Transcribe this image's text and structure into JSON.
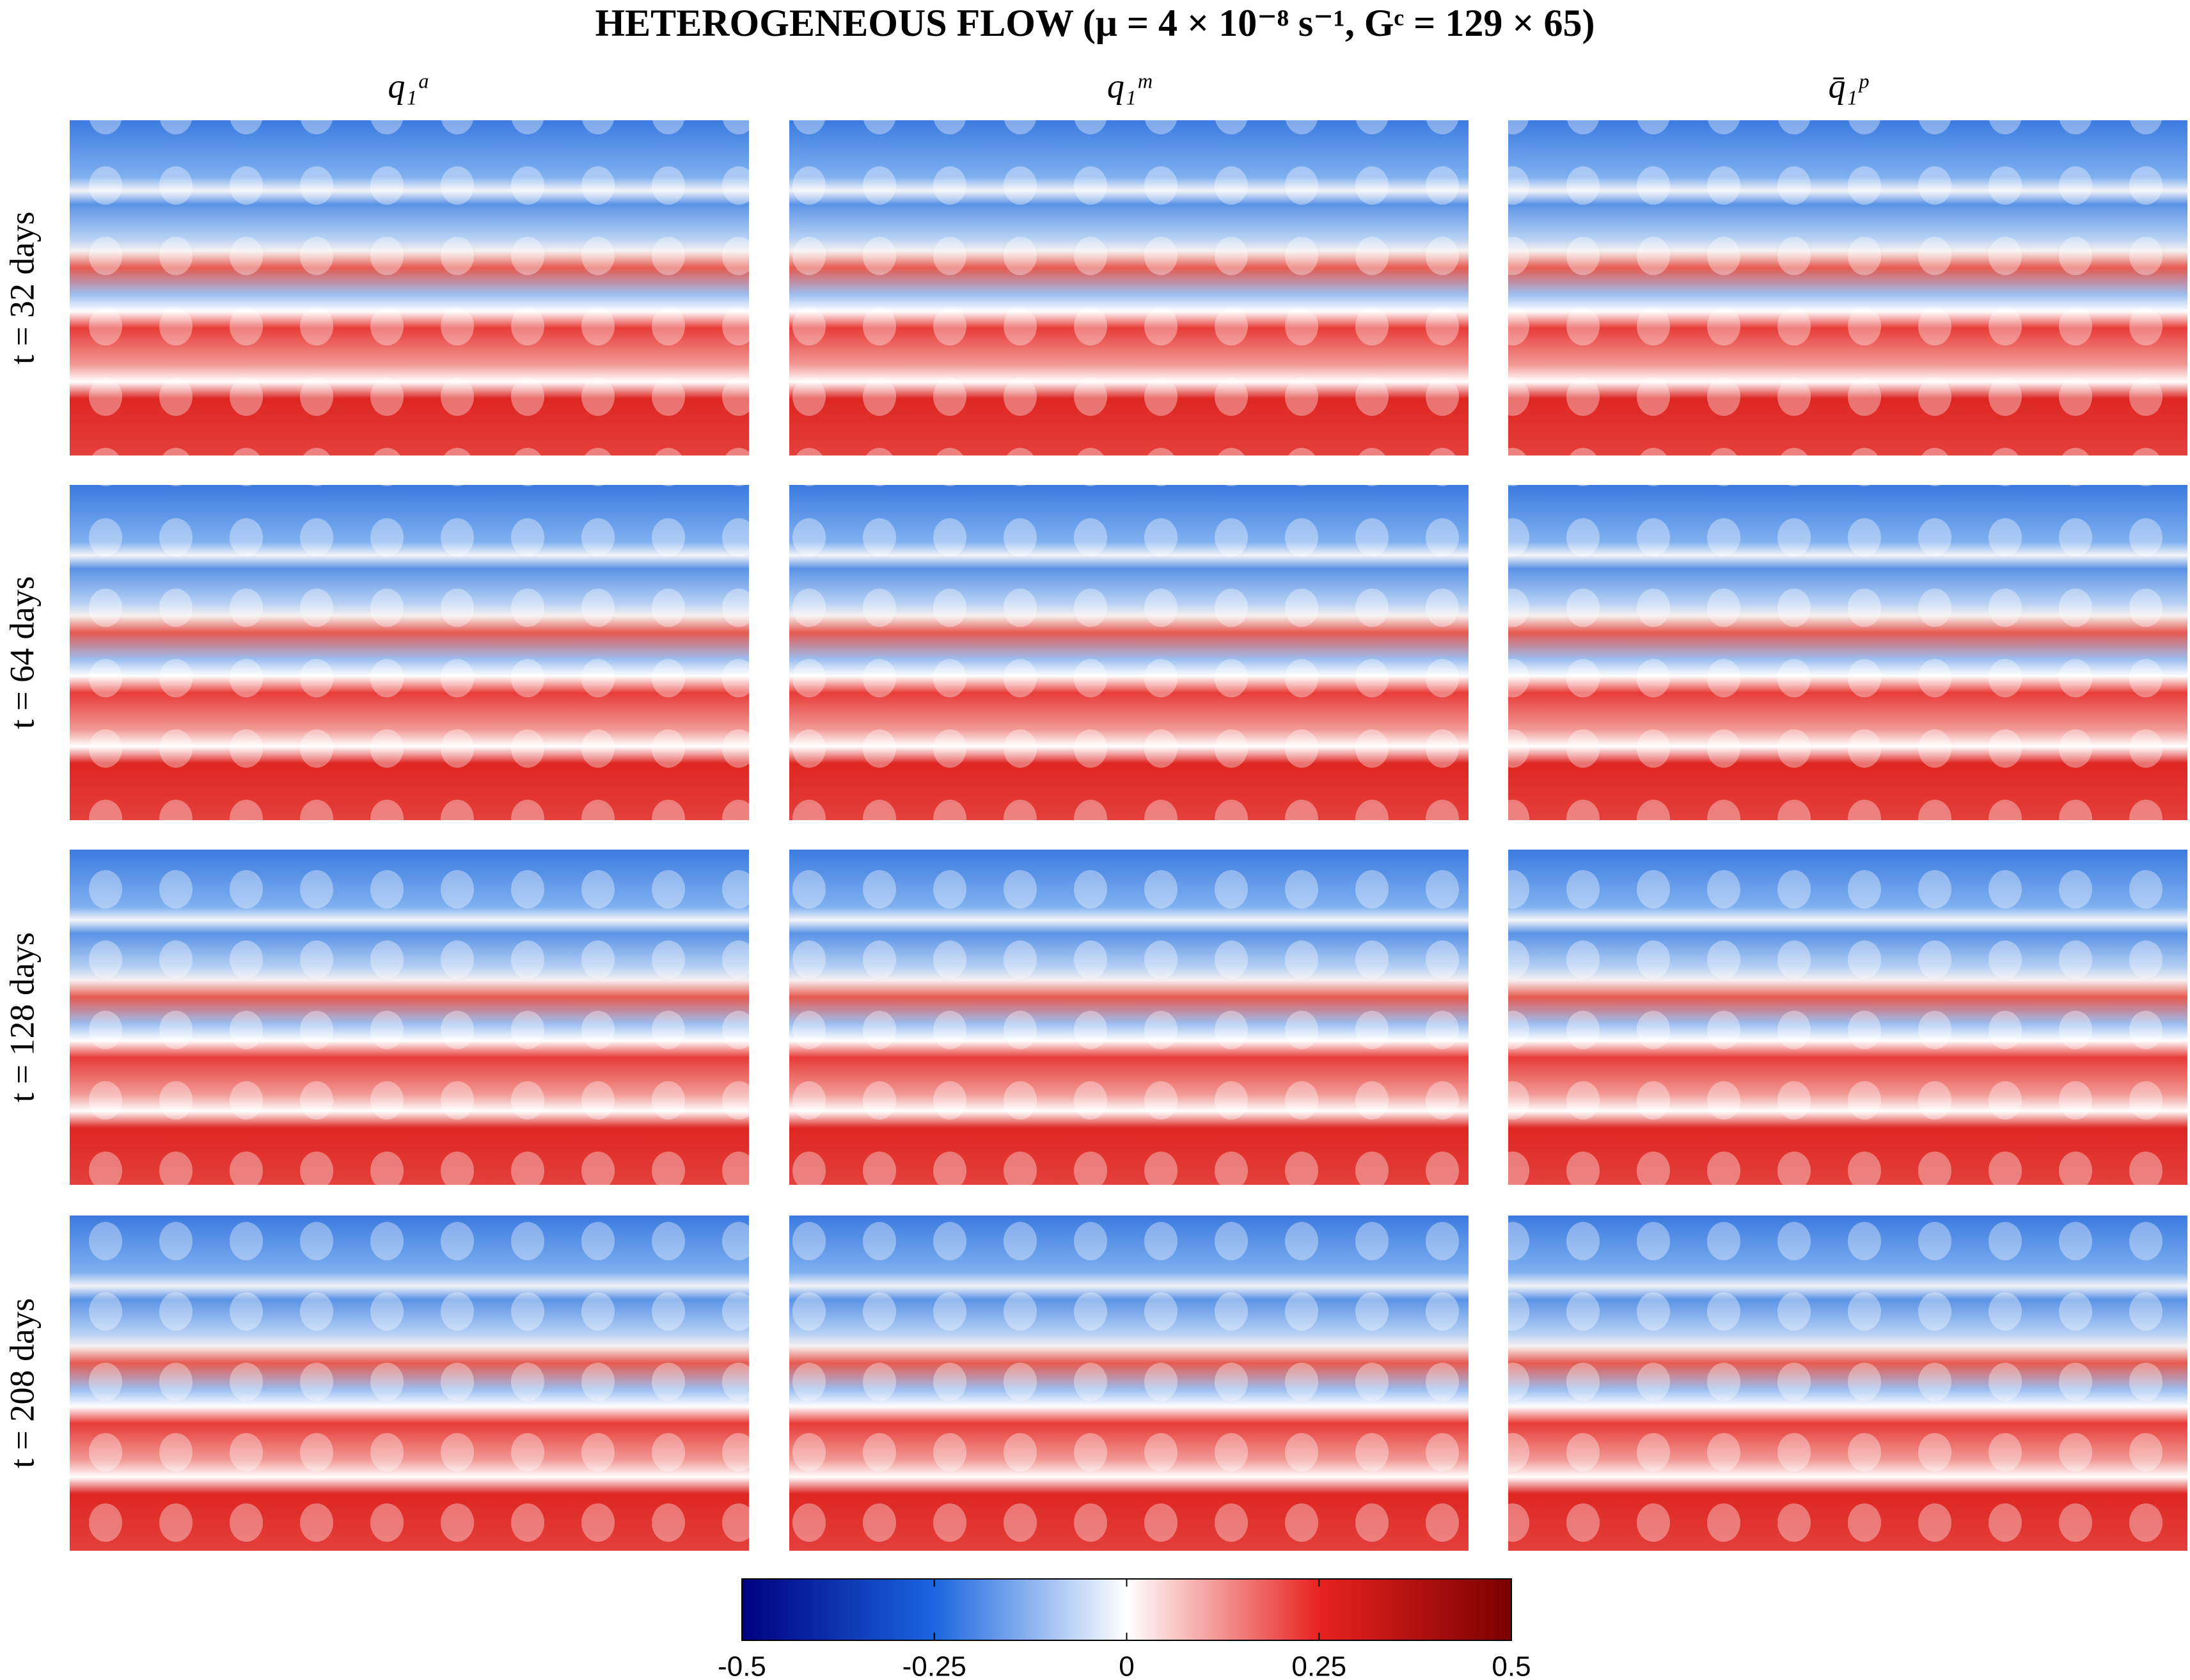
{
  "chart_data": {
    "type": "heatmap",
    "title": "HETEROGENEOUS FLOW (μ = 4 × 10⁻⁸ s⁻¹, Gᶜ = 129 × 65)",
    "columns": [
      "q₁ᵃ",
      "q₁ᵐ",
      "q̄₁ᵖ"
    ],
    "rows": [
      "t = 32 days",
      "t = 64 days",
      "t = 128 days",
      "t = 208 days"
    ],
    "colormap": [
      "#00007f",
      "#1a66e0",
      "#ffffff",
      "#e8231f",
      "#7a0000"
    ],
    "zlim": [
      -0.5,
      0.5
    ],
    "zticks": [
      -0.5,
      -0.25,
      0,
      0.25,
      0.5
    ]
  }
}
